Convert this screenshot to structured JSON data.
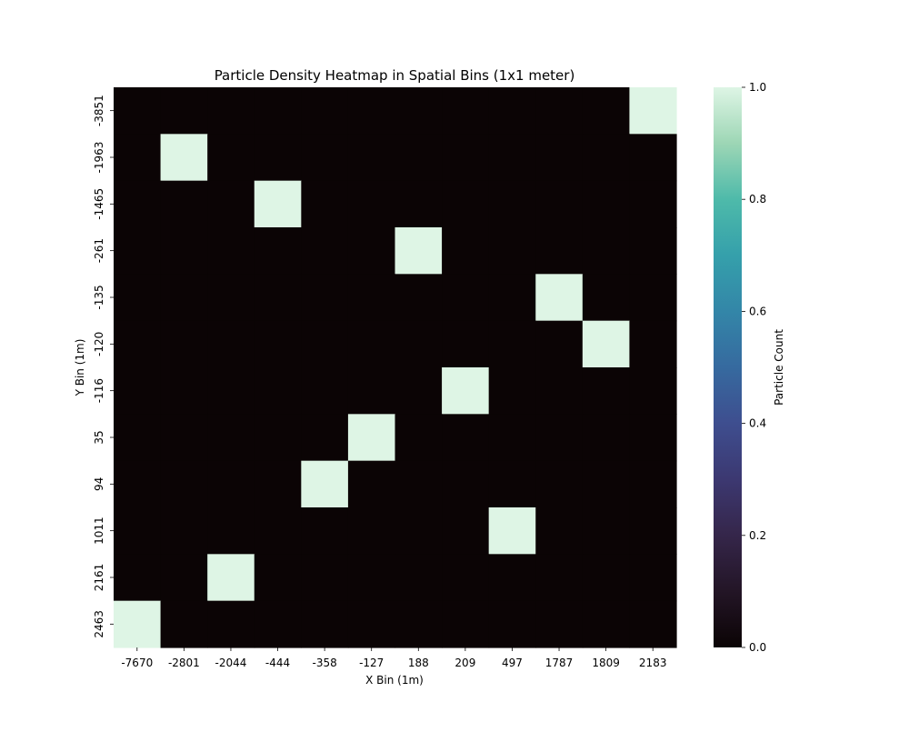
{
  "chart_data": {
    "type": "heatmap",
    "title": "Particle Density Heatmap in Spatial Bins (1x1 meter)",
    "xlabel": "X Bin (1m)",
    "ylabel": "Y Bin (1m)",
    "x_categories": [
      "-7670",
      "-2801",
      "-2044",
      "-444",
      "-358",
      "-127",
      "188",
      "209",
      "497",
      "1787",
      "1809",
      "2183"
    ],
    "y_categories": [
      "-3851",
      "-1963",
      "-1465",
      "-261",
      "-135",
      "-120",
      "-116",
      "35",
      "94",
      "1011",
      "2161",
      "2463"
    ],
    "values": [
      [
        0,
        0,
        0,
        0,
        0,
        0,
        0,
        0,
        0,
        0,
        0,
        1
      ],
      [
        0,
        1,
        0,
        0,
        0,
        0,
        0,
        0,
        0,
        0,
        0,
        0
      ],
      [
        0,
        0,
        0,
        1,
        0,
        0,
        0,
        0,
        0,
        0,
        0,
        0
      ],
      [
        0,
        0,
        0,
        0,
        0,
        0,
        1,
        0,
        0,
        0,
        0,
        0
      ],
      [
        0,
        0,
        0,
        0,
        0,
        0,
        0,
        0,
        0,
        1,
        0,
        0
      ],
      [
        0,
        0,
        0,
        0,
        0,
        0,
        0,
        0,
        0,
        0,
        1,
        0
      ],
      [
        0,
        0,
        0,
        0,
        0,
        0,
        0,
        1,
        0,
        0,
        0,
        0
      ],
      [
        0,
        0,
        0,
        0,
        0,
        1,
        0,
        0,
        0,
        0,
        0,
        0
      ],
      [
        0,
        0,
        0,
        0,
        1,
        0,
        0,
        0,
        0,
        0,
        0,
        0
      ],
      [
        0,
        0,
        0,
        0,
        0,
        0,
        0,
        0,
        1,
        0,
        0,
        0
      ],
      [
        0,
        0,
        1,
        0,
        0,
        0,
        0,
        0,
        0,
        0,
        0,
        0
      ],
      [
        1,
        0,
        0,
        0,
        0,
        0,
        0,
        0,
        0,
        0,
        0,
        0
      ]
    ],
    "colorbar": {
      "label": "Particle Count",
      "range": [
        0.0,
        1.0
      ],
      "ticks": [
        "0.0",
        "0.2",
        "0.4",
        "0.6",
        "0.8",
        "1.0"
      ],
      "colormap": "mako",
      "min_color": "#0b0405",
      "max_color": "#def5e5"
    },
    "grid": false
  }
}
